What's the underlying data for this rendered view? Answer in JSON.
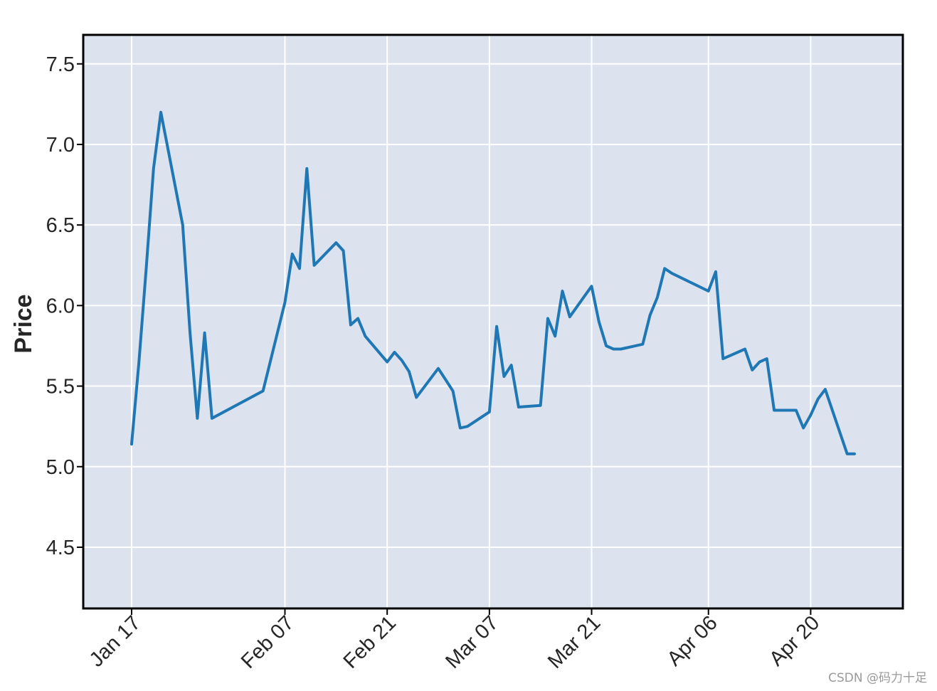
{
  "chart_data": {
    "type": "line",
    "title": "",
    "xlabel": "",
    "ylabel": "Price",
    "ylim": [
      4.12,
      7.68
    ],
    "grid": true,
    "x_start": "2022-01-17",
    "x_end": "2022-04-26",
    "x_ticks": [
      {
        "date": "2022-01-17",
        "label": "Jan 17"
      },
      {
        "date": "2022-02-07",
        "label": "Feb 07"
      },
      {
        "date": "2022-02-21",
        "label": "Feb 21"
      },
      {
        "date": "2022-03-07",
        "label": "Mar 07"
      },
      {
        "date": "2022-03-21",
        "label": "Mar 21"
      },
      {
        "date": "2022-04-06",
        "label": "Apr 06"
      },
      {
        "date": "2022-04-20",
        "label": "Apr 20"
      }
    ],
    "y_ticks": [
      {
        "value": 4.5,
        "label": "4.5"
      },
      {
        "value": 5.0,
        "label": "5.0"
      },
      {
        "value": 5.5,
        "label": "5.5"
      },
      {
        "value": 6.0,
        "label": "6.0"
      },
      {
        "value": 6.5,
        "label": "6.5"
      },
      {
        "value": 7.0,
        "label": "7.0"
      },
      {
        "value": 7.5,
        "label": "7.5"
      }
    ],
    "series": [
      {
        "color": "#1f77b4",
        "x": [
          "2022-01-17",
          "2022-01-18",
          "2022-01-19",
          "2022-01-20",
          "2022-01-21",
          "2022-01-24",
          "2022-01-25",
          "2022-01-26",
          "2022-01-27",
          "2022-01-28",
          "2022-02-04",
          "2022-02-07",
          "2022-02-08",
          "2022-02-09",
          "2022-02-10",
          "2022-02-11",
          "2022-02-14",
          "2022-02-15",
          "2022-02-16",
          "2022-02-17",
          "2022-02-18",
          "2022-02-21",
          "2022-02-22",
          "2022-02-23",
          "2022-02-24",
          "2022-02-25",
          "2022-02-28",
          "2022-03-01",
          "2022-03-02",
          "2022-03-03",
          "2022-03-04",
          "2022-03-07",
          "2022-03-08",
          "2022-03-09",
          "2022-03-10",
          "2022-03-11",
          "2022-03-14",
          "2022-03-15",
          "2022-03-16",
          "2022-03-17",
          "2022-03-18",
          "2022-03-21",
          "2022-03-22",
          "2022-03-23",
          "2022-03-24",
          "2022-03-25",
          "2022-03-28",
          "2022-03-29",
          "2022-03-30",
          "2022-03-31",
          "2022-04-01",
          "2022-04-06",
          "2022-04-07",
          "2022-04-08",
          "2022-04-11",
          "2022-04-12",
          "2022-04-13",
          "2022-04-14",
          "2022-04-15",
          "2022-04-18",
          "2022-04-19",
          "2022-04-20",
          "2022-04-21",
          "2022-04-22",
          "2022-04-25",
          "2022-04-26"
        ],
        "values": [
          5.14,
          5.65,
          6.23,
          6.85,
          7.2,
          6.5,
          5.83,
          5.3,
          5.83,
          5.3,
          5.47,
          6.02,
          6.32,
          6.23,
          6.85,
          6.25,
          6.39,
          6.34,
          5.88,
          5.92,
          5.81,
          5.65,
          5.71,
          5.66,
          5.59,
          5.43,
          5.61,
          5.54,
          5.47,
          5.24,
          5.25,
          5.34,
          5.87,
          5.56,
          5.63,
          5.37,
          5.38,
          5.92,
          5.81,
          6.09,
          5.93,
          6.12,
          5.9,
          5.75,
          5.73,
          5.73,
          5.76,
          5.94,
          6.05,
          6.23,
          6.2,
          6.09,
          6.21,
          5.67,
          5.73,
          5.6,
          5.65,
          5.67,
          5.35,
          5.35,
          5.24,
          5.32,
          5.42,
          5.48,
          5.08,
          5.08
        ]
      }
    ]
  },
  "watermark": "CSDN @码力十足"
}
